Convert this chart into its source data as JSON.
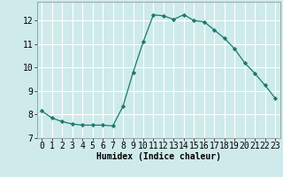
{
  "x": [
    0,
    1,
    2,
    3,
    4,
    5,
    6,
    7,
    8,
    9,
    10,
    11,
    12,
    13,
    14,
    15,
    16,
    17,
    18,
    19,
    20,
    21,
    22,
    23
  ],
  "y": [
    8.15,
    7.85,
    7.7,
    7.6,
    7.55,
    7.55,
    7.55,
    7.52,
    8.35,
    9.8,
    11.1,
    12.25,
    12.2,
    12.05,
    12.25,
    12.0,
    11.95,
    11.6,
    11.25,
    10.8,
    10.2,
    9.75,
    9.25,
    8.7
  ],
  "line_color": "#1a7a6a",
  "marker": "D",
  "marker_size": 2.2,
  "bg_color": "#ceeaea",
  "grid_color": "#ffffff",
  "xlabel": "Humidex (Indice chaleur)",
  "xlim": [
    -0.5,
    23.5
  ],
  "ylim": [
    7.0,
    12.8
  ],
  "yticks": [
    7,
    8,
    9,
    10,
    11,
    12
  ],
  "xticks": [
    0,
    1,
    2,
    3,
    4,
    5,
    6,
    7,
    8,
    9,
    10,
    11,
    12,
    13,
    14,
    15,
    16,
    17,
    18,
    19,
    20,
    21,
    22,
    23
  ],
  "xlabel_fontsize": 7,
  "tick_fontsize": 7
}
